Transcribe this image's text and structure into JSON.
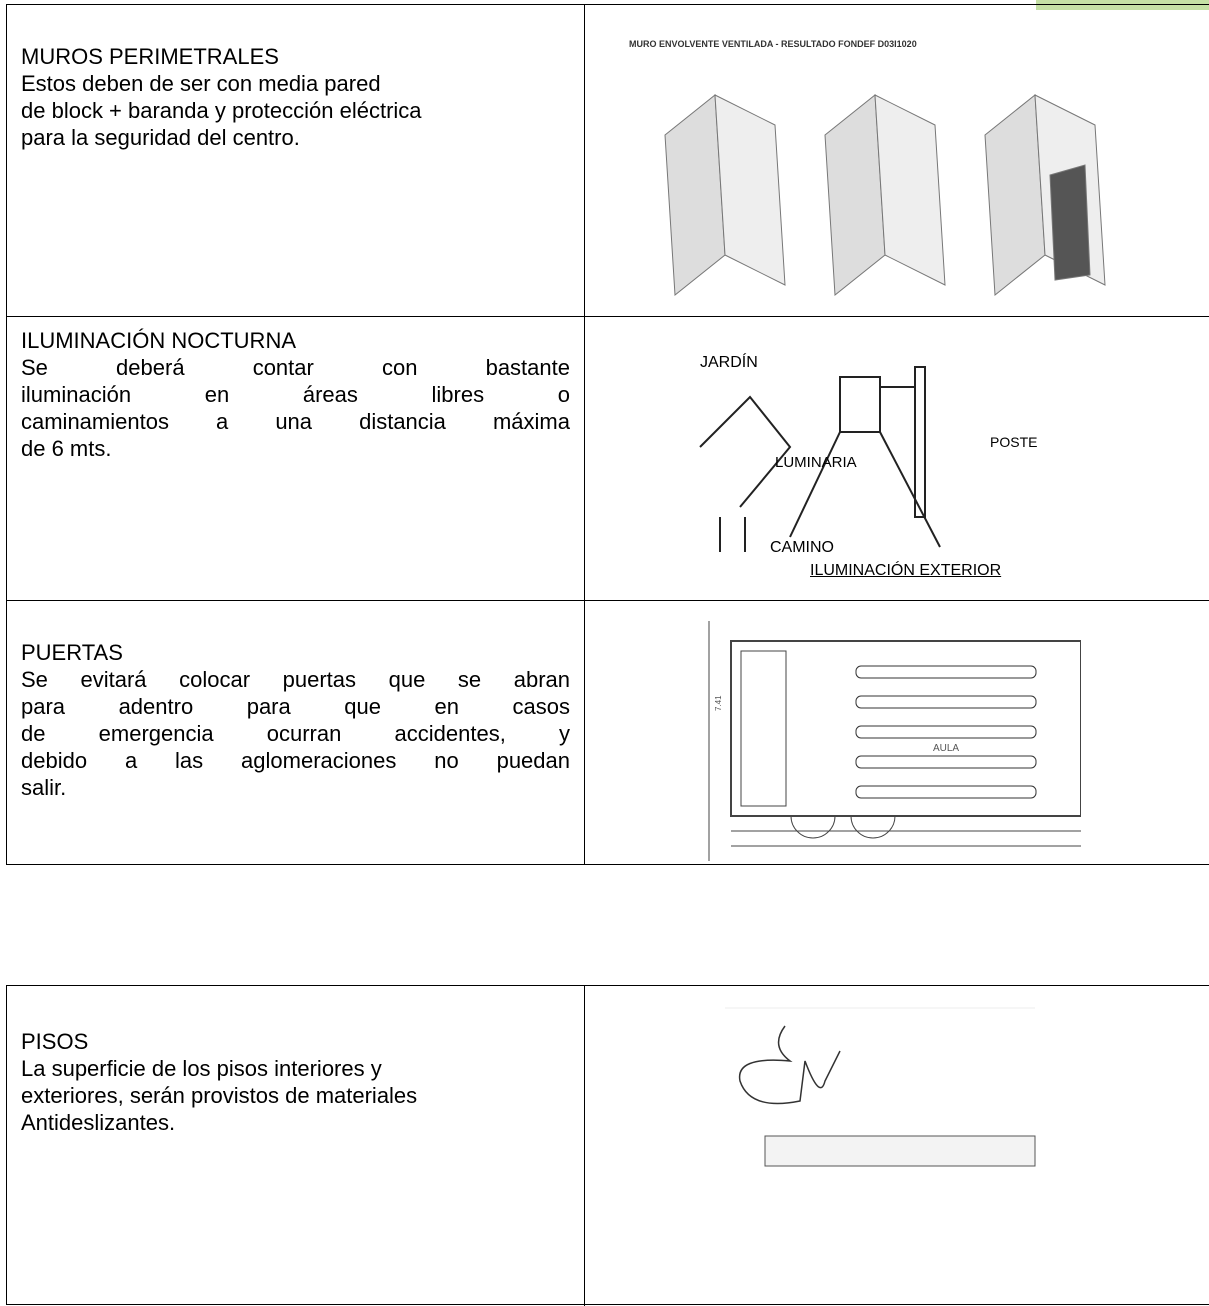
{
  "tables": [
    {
      "rows": [
        {
          "title": "MUROS PERIMETRALES",
          "lines": [
            "Estos  deben de ser con media pared",
            "de block + baranda y protección eléctrica",
            "para la seguridad del centro."
          ],
          "figure": {
            "caption": "MURO ENVOLVENTE VENTILADA - RESULTADO FONDEF D03I1020"
          }
        },
        {
          "title": "ILUMINACIÓN NOCTURNA",
          "lines": [
            "Se deberá contar con bastante",
            "iluminación en áreas libres o",
            "caminamientos a una distancia máxima",
            "de 6 mts."
          ],
          "figure": {
            "labels": [
              "JARDÍN",
              "LUMINARIA",
              "POSTE",
              "CAMINO",
              "ILUMINACIÓN EXTERIOR"
            ]
          }
        },
        {
          "title": "PUERTAS",
          "lines": [
            "Se evitará colocar puertas que se abran",
            "para adentro para que en casos",
            "de emergencia ocurran accidentes, y",
            "debido a las aglomeraciones no puedan",
            "salir."
          ],
          "figure": {
            "labels": [
              "AULA",
              "7.41"
            ]
          }
        }
      ]
    },
    {
      "rows": [
        {
          "title": "PISOS",
          "lines": [
            "La superficie de los pisos interiores y",
            "exteriores, serán provistos de materiales",
            "Antideslizantes."
          ]
        }
      ]
    }
  ]
}
